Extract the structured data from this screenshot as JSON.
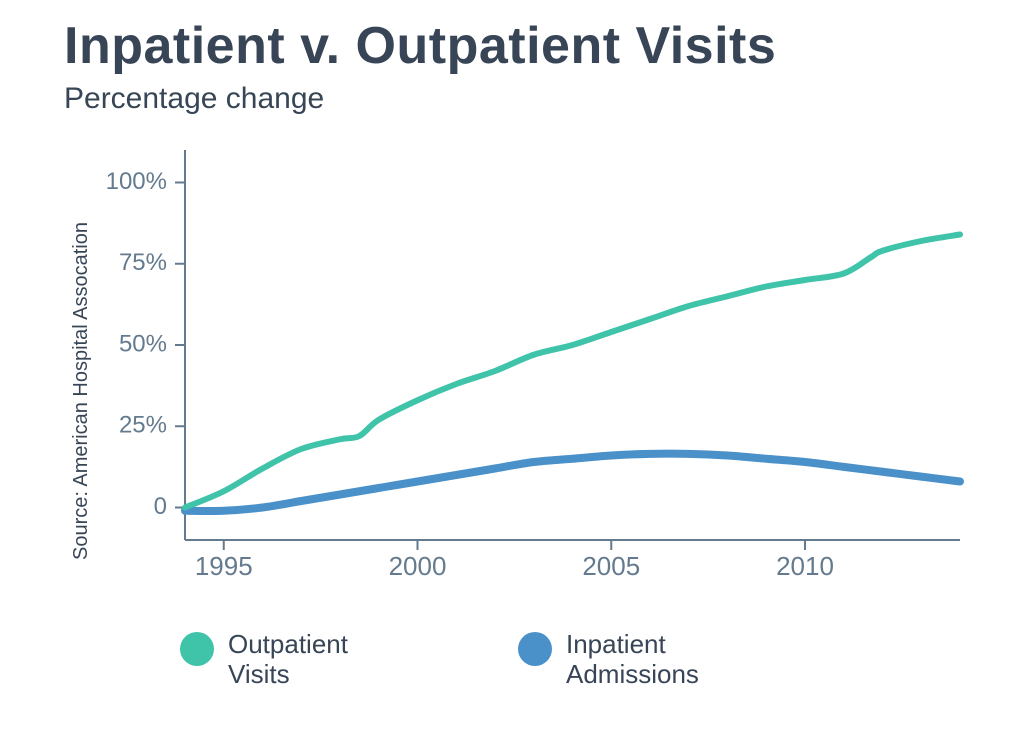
{
  "title": "Inpatient v. Outpatient Visits",
  "subtitle": "Percentage change",
  "source": "Source: American Hospital Assocation",
  "colors": {
    "text_primary": "#374556",
    "axis": "#647a8e",
    "background": "#ffffff"
  },
  "title_fontsize": 52,
  "subtitle_fontsize": 30,
  "axis_label_fontsize": 24,
  "legend_fontsize": 26,
  "chart": {
    "type": "line",
    "xlim": [
      1994,
      2014
    ],
    "ylim": [
      -10,
      110
    ],
    "y_ticks": [
      0,
      25,
      50,
      75,
      100
    ],
    "y_tick_labels": [
      "0",
      "25%",
      "50%",
      "75%",
      "100%"
    ],
    "x_ticks": [
      1995,
      2000,
      2005,
      2010
    ],
    "x_tick_labels": [
      "1995",
      "2000",
      "2005",
      "2010"
    ],
    "x_tick_length": 10,
    "y_tick_length": 10,
    "series": [
      {
        "name": "Outpatient Visits",
        "legend_label_line1": "Outpatient",
        "legend_label_line2": "Visits",
        "color": "#3fc3a9",
        "stroke_width": 6,
        "data": [
          [
            1994,
            0
          ],
          [
            1995,
            5
          ],
          [
            1996,
            12
          ],
          [
            1997,
            18
          ],
          [
            1998,
            21
          ],
          [
            1998.5,
            22
          ],
          [
            1999,
            27
          ],
          [
            2000,
            33
          ],
          [
            2001,
            38
          ],
          [
            2002,
            42
          ],
          [
            2003,
            47
          ],
          [
            2004,
            50
          ],
          [
            2005,
            54
          ],
          [
            2006,
            58
          ],
          [
            2007,
            62
          ],
          [
            2008,
            65
          ],
          [
            2009,
            68
          ],
          [
            2010,
            70
          ],
          [
            2011,
            72
          ],
          [
            2011.7,
            77
          ],
          [
            2012,
            79
          ],
          [
            2013,
            82
          ],
          [
            2014,
            84
          ]
        ]
      },
      {
        "name": "Inpatient Admissions",
        "legend_label_line1": "Inpatient",
        "legend_label_line2": "Admissions",
        "color": "#4a90c9",
        "stroke_width": 8,
        "data": [
          [
            1994,
            -1
          ],
          [
            1995,
            -1
          ],
          [
            1996,
            0
          ],
          [
            1997,
            2
          ],
          [
            1998,
            4
          ],
          [
            1999,
            6
          ],
          [
            2000,
            8
          ],
          [
            2001,
            10
          ],
          [
            2002,
            12
          ],
          [
            2003,
            14
          ],
          [
            2004,
            15
          ],
          [
            2005,
            16
          ],
          [
            2006,
            16.5
          ],
          [
            2007,
            16.5
          ],
          [
            2008,
            16
          ],
          [
            2009,
            15
          ],
          [
            2010,
            14
          ],
          [
            2011,
            12.5
          ],
          [
            2012,
            11
          ],
          [
            2013,
            9.5
          ],
          [
            2014,
            8
          ]
        ]
      }
    ]
  },
  "legend": {
    "swatch_radius": 17,
    "items": [
      {
        "color": "#3fc3a9",
        "line1": "Outpatient",
        "line2": "Visits"
      },
      {
        "color": "#4a90c9",
        "line1": "Inpatient",
        "line2": "Admissions"
      }
    ]
  }
}
